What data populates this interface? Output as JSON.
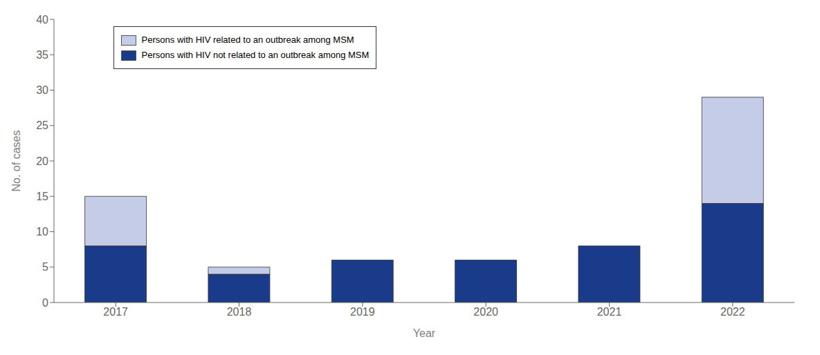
{
  "chart_data": {
    "type": "bar",
    "stacked": true,
    "categories": [
      "2017",
      "2018",
      "2019",
      "2020",
      "2021",
      "2022"
    ],
    "series": [
      {
        "name": "Persons with HIV not related to an outbreak among MSM",
        "color": "#1a3a8a",
        "values": [
          8,
          4,
          6,
          6,
          8,
          14
        ]
      },
      {
        "name": "Persons with HIV related to an outbreak among MSM",
        "color": "#c5cce8",
        "values": [
          7,
          1,
          0,
          0,
          0,
          15
        ]
      }
    ],
    "xlabel": "Year",
    "ylabel": "No. of cases",
    "ylim": [
      0,
      40
    ],
    "yticks": [
      0,
      5,
      10,
      15,
      20,
      25,
      30,
      35,
      40
    ],
    "grid": false,
    "legend": "upper left"
  }
}
